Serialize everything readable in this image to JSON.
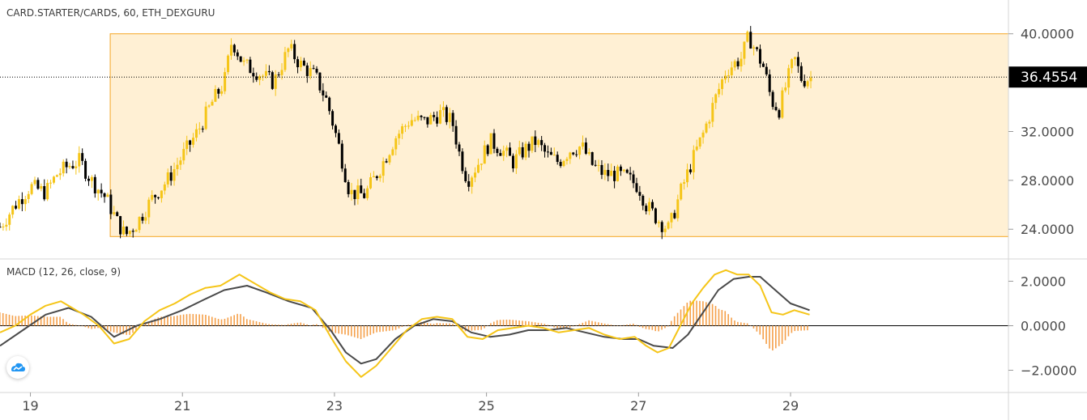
{
  "legend": {
    "main": "CARD.STARTER/CARDS, 60, ETH_DEXGURU",
    "macd": "MACD (12, 26, close, 9)"
  },
  "colors": {
    "up": "#f5c518",
    "down": "#000000",
    "box_fill": "#fff0d4",
    "box_border": "#f5a623",
    "macd_line": "#f5c518",
    "signal_line": "#4a4a4a",
    "hist": "#f5a04a",
    "price_tag_bg": "#000000"
  },
  "last_price_label": "36.4554",
  "chart_data": [
    {
      "type": "candlestick",
      "title": "CARD.STARTER/CARDS, 60, ETH_DEXGURU",
      "x_tick_labels": [
        "19",
        "21",
        "23",
        "25",
        "27",
        "29"
      ],
      "x_ticks": [
        19,
        21,
        23,
        25,
        27,
        29
      ],
      "xlim": [
        18.6,
        32.9
      ],
      "y_tick_labels": [
        "40.0000",
        "32.0000",
        "28.0000",
        "24.0000"
      ],
      "y_ticks": [
        40,
        32,
        28,
        24
      ],
      "ylim": [
        21.3,
        42.5
      ],
      "last_price": 36.4554,
      "range_box": {
        "x": [
          20.05,
          32.9
        ],
        "y": [
          23.4,
          40.0
        ]
      },
      "price_path": [
        [
          18.6,
          24.2
        ],
        [
          18.8,
          26.0
        ],
        [
          19.0,
          27.5
        ],
        [
          19.2,
          27.0
        ],
        [
          19.35,
          28.5
        ],
        [
          19.5,
          29.2
        ],
        [
          19.65,
          29.6
        ],
        [
          19.8,
          28.0
        ],
        [
          20.0,
          26.5
        ],
        [
          20.15,
          24.5
        ],
        [
          20.25,
          23.5
        ],
        [
          20.4,
          24.5
        ],
        [
          20.6,
          26.5
        ],
        [
          20.8,
          28.0
        ],
        [
          21.0,
          30.0
        ],
        [
          21.2,
          32.0
        ],
        [
          21.4,
          34.5
        ],
        [
          21.55,
          36.0
        ],
        [
          21.65,
          39.5
        ],
        [
          21.8,
          37.5
        ],
        [
          22.0,
          36.8
        ],
        [
          22.2,
          36.0
        ],
        [
          22.4,
          38.8
        ],
        [
          22.55,
          37.5
        ],
        [
          22.75,
          36.5
        ],
        [
          22.9,
          34.5
        ],
        [
          23.05,
          31.0
        ],
        [
          23.2,
          27.0
        ],
        [
          23.4,
          26.8
        ],
        [
          23.6,
          29.0
        ],
        [
          23.8,
          31.5
        ],
        [
          24.0,
          33.0
        ],
        [
          24.2,
          32.8
        ],
        [
          24.4,
          33.5
        ],
        [
          24.55,
          32.8
        ],
        [
          24.65,
          30.0
        ],
        [
          24.75,
          28.0
        ],
        [
          24.9,
          29.5
        ],
        [
          25.05,
          31.2
        ],
        [
          25.2,
          30.5
        ],
        [
          25.35,
          29.5
        ],
        [
          25.5,
          30.5
        ],
        [
          25.65,
          31.2
        ],
        [
          25.8,
          30.0
        ],
        [
          25.95,
          29.5
        ],
        [
          26.1,
          30.5
        ],
        [
          26.25,
          30.8
        ],
        [
          26.4,
          29.2
        ],
        [
          26.55,
          28.5
        ],
        [
          26.7,
          28.5
        ],
        [
          26.85,
          28.2
        ],
        [
          27.0,
          27.5
        ],
        [
          27.1,
          26.0
        ],
        [
          27.2,
          25.2
        ],
        [
          27.3,
          24.5
        ],
        [
          27.4,
          24.0
        ],
        [
          27.55,
          27.0
        ],
        [
          27.7,
          29.5
        ],
        [
          27.85,
          31.8
        ],
        [
          28.0,
          34.5
        ],
        [
          28.15,
          37.0
        ],
        [
          28.35,
          38.0
        ],
        [
          28.45,
          39.8
        ],
        [
          28.55,
          38.5
        ],
        [
          28.65,
          37.2
        ],
        [
          28.75,
          34.5
        ],
        [
          28.85,
          33.8
        ],
        [
          28.95,
          36.0
        ],
        [
          29.05,
          38.0
        ],
        [
          29.15,
          36.2
        ],
        [
          29.3,
          36.45
        ]
      ]
    },
    {
      "type": "line",
      "title": "MACD (12, 26, close, 9)",
      "y_tick_labels": [
        "2.0000",
        "0.0000",
        "−2.0000"
      ],
      "y_ticks": [
        2,
        0,
        -2
      ],
      "ylim": [
        -3.0,
        3.0
      ],
      "zero_line": 0,
      "series": [
        {
          "role": "macd",
          "x": [
            18.6,
            18.8,
            19.0,
            19.2,
            19.4,
            19.55,
            19.7,
            19.9,
            20.1,
            20.3,
            20.5,
            20.7,
            20.9,
            21.1,
            21.3,
            21.5,
            21.75,
            21.95,
            22.15,
            22.35,
            22.55,
            22.75,
            22.95,
            23.15,
            23.35,
            23.55,
            23.75,
            23.95,
            24.15,
            24.35,
            24.55,
            24.75,
            24.95,
            25.15,
            25.35,
            25.55,
            25.75,
            25.95,
            26.15,
            26.35,
            26.55,
            26.75,
            26.95,
            27.1,
            27.25,
            27.4,
            27.55,
            27.7,
            27.85,
            28.0,
            28.15,
            28.3,
            28.45,
            28.6,
            28.75,
            28.9,
            29.05,
            29.25
          ],
          "values": [
            -0.3,
            0.0,
            0.5,
            0.9,
            1.1,
            0.8,
            0.5,
            0.0,
            -0.8,
            -0.6,
            0.2,
            0.7,
            1.0,
            1.4,
            1.7,
            1.8,
            2.3,
            1.9,
            1.5,
            1.2,
            1.1,
            0.7,
            -0.5,
            -1.6,
            -2.3,
            -1.8,
            -1.0,
            -0.2,
            0.3,
            0.4,
            0.3,
            -0.5,
            -0.6,
            -0.2,
            -0.1,
            0.0,
            -0.1,
            -0.3,
            -0.2,
            -0.1,
            -0.4,
            -0.6,
            -0.5,
            -0.9,
            -1.2,
            -1.0,
            0.0,
            1.0,
            1.7,
            2.3,
            2.5,
            2.3,
            2.3,
            1.8,
            0.6,
            0.5,
            0.7,
            0.5
          ]
        },
        {
          "role": "signal",
          "x": [
            18.6,
            18.9,
            19.2,
            19.5,
            19.8,
            20.1,
            20.4,
            20.7,
            21.0,
            21.3,
            21.55,
            21.85,
            22.1,
            22.4,
            22.7,
            22.95,
            23.15,
            23.35,
            23.55,
            23.8,
            24.05,
            24.3,
            24.55,
            24.8,
            25.05,
            25.3,
            25.55,
            25.8,
            26.05,
            26.3,
            26.55,
            26.8,
            27.0,
            27.2,
            27.45,
            27.65,
            27.85,
            28.05,
            28.25,
            28.45,
            28.6,
            28.8,
            29.0,
            29.25
          ],
          "values": [
            -0.9,
            -0.2,
            0.5,
            0.8,
            0.4,
            -0.5,
            0.0,
            0.3,
            0.7,
            1.2,
            1.6,
            1.8,
            1.5,
            1.1,
            0.8,
            -0.2,
            -1.2,
            -1.7,
            -1.5,
            -0.6,
            0.0,
            0.3,
            0.2,
            -0.3,
            -0.5,
            -0.4,
            -0.2,
            -0.2,
            -0.1,
            -0.3,
            -0.5,
            -0.6,
            -0.6,
            -0.9,
            -1.0,
            -0.4,
            0.6,
            1.6,
            2.1,
            2.2,
            2.2,
            1.6,
            1.0,
            0.7
          ]
        }
      ],
      "histogram": {
        "x_range": [
          18.6,
          29.25
        ],
        "note": "difference of macd and signal lines"
      }
    }
  ]
}
